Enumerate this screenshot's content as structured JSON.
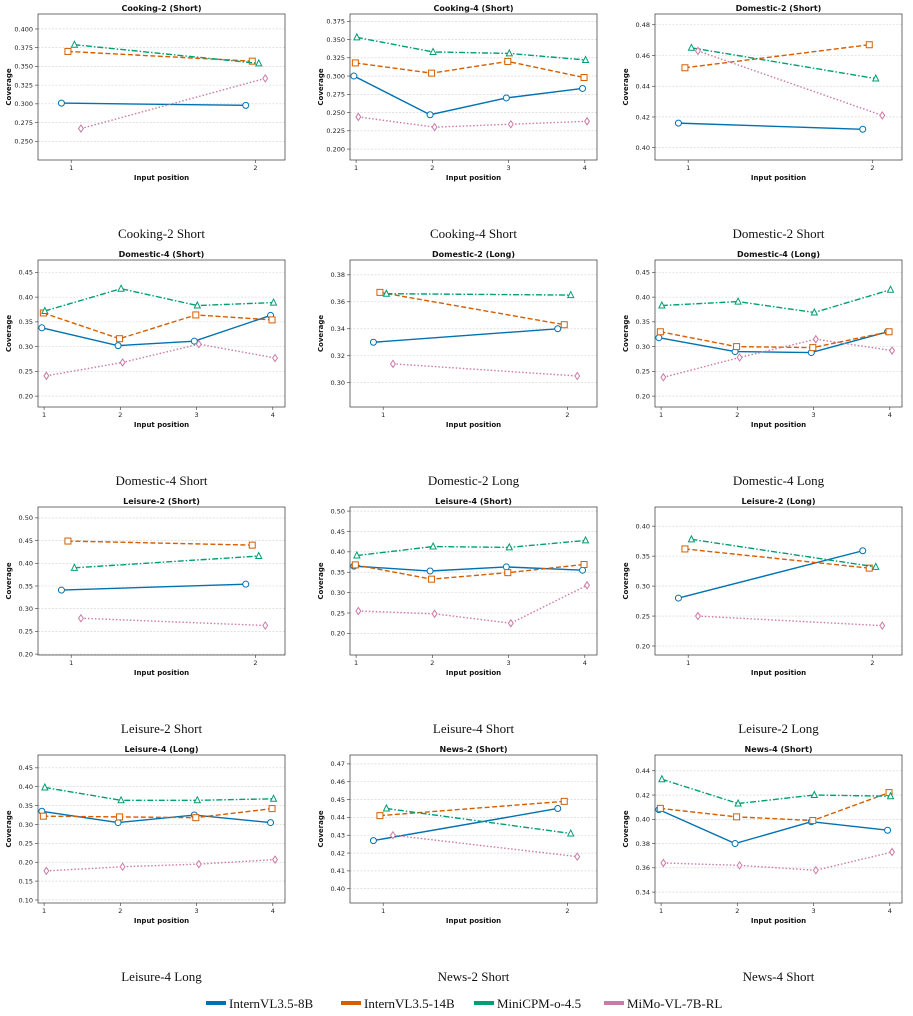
{
  "legend": [
    {
      "name": "InternVL3.5-8B",
      "color": "#0072b2",
      "marker": "circle",
      "dash": "solid"
    },
    {
      "name": "InternVL3.5-14B",
      "color": "#d55e00",
      "marker": "square",
      "dash": "dashed"
    },
    {
      "name": "MiniCPM-o-4.5",
      "color": "#009e73",
      "marker": "triangle",
      "dash": "dashdot"
    },
    {
      "name": "MiMo-VL-7B-RL",
      "color": "#cc79a7",
      "marker": "diamond",
      "dash": "dotted"
    }
  ],
  "chart_data": [
    {
      "type": "line",
      "title": "Cooking-2 (Short)",
      "caption": "Cooking-2 Short",
      "xlabel": "Input position",
      "ylabel": "Coverage",
      "grid": true,
      "x": [
        1,
        2
      ],
      "xlim": [
        0.82,
        2.16
      ],
      "xticks": [
        1,
        2
      ],
      "ylim": [
        0.225,
        0.42
      ],
      "yticks": [
        {
          "value": 0.25,
          "label": "0.250"
        },
        0.275,
        {
          "value": 0.3,
          "label": "0.300"
        },
        0.325,
        {
          "value": 0.35,
          "label": "0.350"
        },
        0.375,
        {
          "value": 0.4,
          "label": "0.400"
        }
      ],
      "series": [
        {
          "values": [
            0.301,
            0.298
          ]
        },
        {
          "values": [
            0.37,
            0.357
          ]
        },
        {
          "values": [
            0.379,
            0.354
          ]
        },
        {
          "values": [
            0.267,
            0.334
          ]
        }
      ]
    },
    {
      "type": "line",
      "title": "Cooking-4 (Short)",
      "caption": "Cooking-4 Short",
      "xlabel": "Input position",
      "ylabel": "Coverage",
      "grid": true,
      "x": [
        1,
        2,
        3,
        4
      ],
      "xlim": [
        0.92,
        4.16
      ],
      "xticks": [
        1,
        2,
        3,
        4
      ],
      "ylim": [
        0.185,
        0.385
      ],
      "yticks": [
        {
          "value": 0.2,
          "label": "0.200"
        },
        0.225,
        {
          "value": 0.25,
          "label": "0.250"
        },
        0.275,
        {
          "value": 0.3,
          "label": "0.300"
        },
        0.325,
        {
          "value": 0.35,
          "label": "0.350"
        },
        0.375
      ],
      "series": [
        {
          "values": [
            0.3,
            0.247,
            0.27,
            0.283
          ]
        },
        {
          "values": [
            0.318,
            0.304,
            0.32,
            0.298
          ]
        },
        {
          "values": [
            0.353,
            0.333,
            0.331,
            0.322
          ]
        },
        {
          "values": [
            0.244,
            0.23,
            0.234,
            0.238
          ]
        }
      ]
    },
    {
      "type": "line",
      "title": "Domestic-2 (Short)",
      "caption": "Domestic-2 Short",
      "xlabel": "Input position",
      "ylabel": "Coverage",
      "grid": true,
      "x": [
        1,
        2
      ],
      "xlim": [
        0.82,
        2.16
      ],
      "xticks": [
        1,
        2
      ],
      "ylim": [
        0.392,
        0.487
      ],
      "yticks": [
        {
          "value": 0.4,
          "label": "0.40"
        },
        0.42,
        0.44,
        0.46,
        0.48
      ],
      "series": [
        {
          "values": [
            0.416,
            0.412
          ]
        },
        {
          "values": [
            0.452,
            0.467
          ]
        },
        {
          "values": [
            0.465,
            0.445
          ]
        },
        {
          "values": [
            0.463,
            0.421
          ]
        }
      ]
    },
    {
      "type": "line",
      "title": "Domestic-4 (Short)",
      "caption": "Domestic-4 Short",
      "xlabel": "Input position",
      "ylabel": "Coverage",
      "grid": true,
      "x": [
        1,
        2,
        3,
        4
      ],
      "xlim": [
        0.92,
        4.16
      ],
      "xticks": [
        1,
        2,
        3,
        4
      ],
      "ylim": [
        0.178,
        0.475
      ],
      "yticks": [
        {
          "value": 0.2,
          "label": "0.20"
        },
        0.25,
        {
          "value": 0.3,
          "label": "0.30"
        },
        0.35,
        {
          "value": 0.4,
          "label": "0.40"
        },
        0.45
      ],
      "series": [
        {
          "values": [
            0.338,
            0.302,
            0.311,
            0.363
          ]
        },
        {
          "values": [
            0.368,
            0.316,
            0.364,
            0.354
          ]
        },
        {
          "values": [
            0.372,
            0.417,
            0.383,
            0.389
          ]
        },
        {
          "values": [
            0.241,
            0.268,
            0.305,
            0.277
          ]
        }
      ]
    },
    {
      "type": "line",
      "title": "Domestic-2 (Long)",
      "caption": "Domestic-2 Long",
      "xlabel": "Input position",
      "ylabel": "Coverage",
      "grid": true,
      "x": [
        1,
        2
      ],
      "xlim": [
        0.82,
        2.16
      ],
      "xticks": [
        1,
        2
      ],
      "ylim": [
        0.282,
        0.391
      ],
      "yticks": [
        {
          "value": 0.3,
          "label": "0.30"
        },
        0.32,
        0.34,
        0.36,
        0.38
      ],
      "series": [
        {
          "values": [
            0.33,
            0.34
          ]
        },
        {
          "values": [
            0.367,
            0.343
          ]
        },
        {
          "values": [
            0.366,
            0.365
          ]
        },
        {
          "values": [
            0.314,
            0.305
          ]
        }
      ]
    },
    {
      "type": "line",
      "title": "Domestic-4 (Long)",
      "caption": "Domestic-4 Long",
      "xlabel": "Input position",
      "ylabel": "Coverage",
      "grid": true,
      "x": [
        1,
        2,
        3,
        4
      ],
      "xlim": [
        0.92,
        4.16
      ],
      "xticks": [
        1,
        2,
        3,
        4
      ],
      "ylim": [
        0.178,
        0.475
      ],
      "yticks": [
        {
          "value": 0.2,
          "label": "0.20"
        },
        0.25,
        {
          "value": 0.3,
          "label": "0.30"
        },
        0.35,
        {
          "value": 0.4,
          "label": "0.40"
        },
        0.45
      ],
      "series": [
        {
          "values": [
            0.318,
            0.29,
            0.288,
            0.33
          ]
        },
        {
          "values": [
            0.33,
            0.3,
            0.298,
            0.33
          ]
        },
        {
          "values": [
            0.383,
            0.391,
            0.369,
            0.415
          ]
        },
        {
          "values": [
            0.238,
            0.278,
            0.315,
            0.292
          ]
        }
      ]
    },
    {
      "type": "line",
      "title": "Leisure-2 (Short)",
      "caption": "Leisure-2 Short",
      "xlabel": "Input position",
      "ylabel": "Coverage",
      "grid": true,
      "x": [
        1,
        2
      ],
      "xlim": [
        0.82,
        2.16
      ],
      "xticks": [
        1,
        2
      ],
      "ylim": [
        0.198,
        0.524
      ],
      "yticks": [
        {
          "value": 0.2,
          "label": "0.20"
        },
        0.25,
        {
          "value": 0.3,
          "label": "0.30"
        },
        0.35,
        {
          "value": 0.4,
          "label": "0.40"
        },
        0.45,
        {
          "value": 0.5,
          "label": "0.50"
        }
      ],
      "series": [
        {
          "values": [
            0.341,
            0.354
          ]
        },
        {
          "values": [
            0.449,
            0.44
          ]
        },
        {
          "values": [
            0.39,
            0.416
          ]
        },
        {
          "values": [
            0.279,
            0.263
          ]
        }
      ]
    },
    {
      "type": "line",
      "title": "Leisure-4 (Short)",
      "caption": "Leisure-4 Short",
      "xlabel": "Input position",
      "ylabel": "Coverage",
      "grid": true,
      "x": [
        1,
        2,
        3,
        4
      ],
      "xlim": [
        0.92,
        4.16
      ],
      "xticks": [
        1,
        2,
        3,
        4
      ],
      "ylim": [
        0.147,
        0.51
      ],
      "yticks": [
        {
          "value": 0.2,
          "label": "0.20"
        },
        0.25,
        {
          "value": 0.3,
          "label": "0.30"
        },
        0.35,
        {
          "value": 0.4,
          "label": "0.40"
        },
        0.45,
        {
          "value": 0.5,
          "label": "0.50"
        }
      ],
      "series": [
        {
          "values": [
            0.365,
            0.353,
            0.363,
            0.355
          ]
        },
        {
          "values": [
            0.368,
            0.333,
            0.349,
            0.369
          ]
        },
        {
          "values": [
            0.391,
            0.413,
            0.411,
            0.428
          ]
        },
        {
          "values": [
            0.255,
            0.248,
            0.225,
            0.318
          ]
        }
      ]
    },
    {
      "type": "line",
      "title": "Leisure-2 (Long)",
      "caption": "Leisure-2 Long",
      "xlabel": "Input position",
      "ylabel": "Coverage",
      "grid": true,
      "x": [
        1,
        2
      ],
      "xlim": [
        0.82,
        2.16
      ],
      "xticks": [
        1,
        2
      ],
      "ylim": [
        0.185,
        0.432
      ],
      "yticks": [
        {
          "value": 0.2,
          "label": "0.20"
        },
        0.25,
        {
          "value": 0.3,
          "label": "0.30"
        },
        0.35,
        {
          "value": 0.4,
          "label": "0.40"
        }
      ],
      "series": [
        {
          "values": [
            0.28,
            0.359
          ]
        },
        {
          "values": [
            0.362,
            0.33
          ]
        },
        {
          "values": [
            0.378,
            0.332
          ]
        },
        {
          "values": [
            0.25,
            0.234
          ]
        }
      ]
    },
    {
      "type": "line",
      "title": "Leisure-4 (Long)",
      "caption": "Leisure-4 Long",
      "xlabel": "Input position",
      "ylabel": "Coverage",
      "grid": true,
      "x": [
        1,
        2,
        3,
        4
      ],
      "xlim": [
        0.92,
        4.16
      ],
      "xticks": [
        1,
        2,
        3,
        4
      ],
      "ylim": [
        0.092,
        0.484
      ],
      "yticks": [
        {
          "value": 0.1,
          "label": "0.10"
        },
        0.15,
        {
          "value": 0.2,
          "label": "0.20"
        },
        0.25,
        {
          "value": 0.3,
          "label": "0.30"
        },
        0.35,
        {
          "value": 0.4,
          "label": "0.40"
        },
        0.45
      ],
      "series": [
        {
          "values": [
            0.335,
            0.305,
            0.325,
            0.305
          ]
        },
        {
          "values": [
            0.322,
            0.32,
            0.318,
            0.342
          ]
        },
        {
          "values": [
            0.398,
            0.364,
            0.364,
            0.368
          ]
        },
        {
          "values": [
            0.177,
            0.188,
            0.195,
            0.207
          ]
        }
      ]
    },
    {
      "type": "line",
      "title": "News-2 (Short)",
      "caption": "News-2 Short",
      "xlabel": "Input position",
      "ylabel": "Coverage",
      "grid": true,
      "x": [
        1,
        2
      ],
      "xlim": [
        0.82,
        2.16
      ],
      "xticks": [
        1,
        2
      ],
      "ylim": [
        0.392,
        0.475
      ],
      "yticks": [
        {
          "value": 0.4,
          "label": "0.40"
        },
        0.41,
        0.42,
        0.43,
        0.44,
        0.45,
        0.46,
        0.47
      ],
      "series": [
        {
          "values": [
            0.427,
            0.445
          ]
        },
        {
          "values": [
            0.441,
            0.449
          ]
        },
        {
          "values": [
            0.445,
            0.431
          ]
        },
        {
          "values": [
            0.43,
            0.418
          ]
        }
      ]
    },
    {
      "type": "line",
      "title": "News-4 (Short)",
      "caption": "News-4 Short",
      "xlabel": "Input position",
      "ylabel": "Coverage",
      "grid": true,
      "x": [
        1,
        2,
        3,
        4
      ],
      "xlim": [
        0.92,
        4.16
      ],
      "xticks": [
        1,
        2,
        3,
        4
      ],
      "ylim": [
        0.331,
        0.453
      ],
      "yticks": [
        0.34,
        0.36,
        0.38,
        {
          "value": 0.4,
          "label": "0.40"
        },
        0.42,
        0.44
      ],
      "series": [
        {
          "values": [
            0.408,
            0.38,
            0.398,
            0.391
          ]
        },
        {
          "values": [
            0.409,
            0.402,
            0.399,
            0.422
          ]
        },
        {
          "values": [
            0.433,
            0.413,
            0.42,
            0.419
          ]
        },
        {
          "values": [
            0.364,
            0.362,
            0.358,
            0.373
          ]
        }
      ]
    }
  ]
}
